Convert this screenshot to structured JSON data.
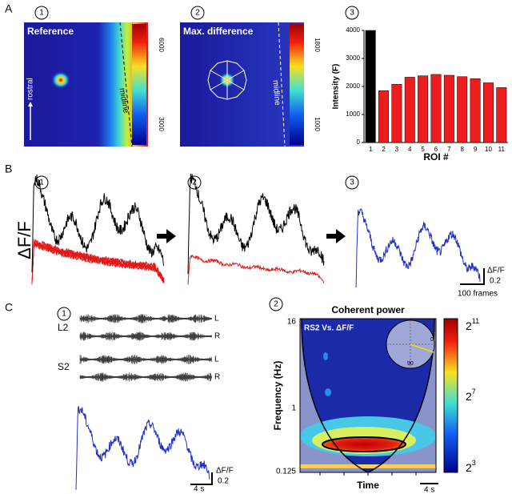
{
  "chart_data": {
    "type": "bar",
    "ylabel": "Intensity (F)",
    "xlabel": "ROI #",
    "categories": [
      "1",
      "2",
      "3",
      "4",
      "5",
      "6",
      "7",
      "8",
      "9",
      "10",
      "11"
    ],
    "values": [
      4000,
      1850,
      2080,
      2330,
      2380,
      2430,
      2400,
      2350,
      2280,
      2130,
      1960
    ],
    "colors": [
      "#000000",
      "#ee1c1c",
      "#ee1c1c",
      "#ee1c1c",
      "#ee1c1c",
      "#ee1c1c",
      "#ee1c1c",
      "#ee1c1c",
      "#ee1c1c",
      "#ee1c1c",
      "#ee1c1c"
    ],
    "ylim": [
      0,
      4000
    ],
    "yticks": [
      0,
      1000,
      2000,
      3000,
      4000
    ],
    "grid": false
  },
  "figure": {
    "panel_labels": [
      "A",
      "B",
      "C"
    ],
    "step_labels": [
      "1",
      "2",
      "3"
    ],
    "a": {
      "reference": "Reference",
      "max_difference": "Max. difference",
      "rostral": "rostral",
      "midline": "midline",
      "colorbar1": [
        "6000",
        "3000"
      ],
      "colorbar2": [
        "1800",
        "1000"
      ]
    },
    "b": {
      "ylabel": "ΔF/F",
      "scale_y_label": "ΔF/F",
      "scale_y_value": "0.2",
      "scale_x": "100 frames"
    },
    "c": {
      "channels": [
        "L2",
        "S2"
      ],
      "sides": [
        "L",
        "R"
      ],
      "scale_y_label": "ΔF/F",
      "scale_y_value": "0.2",
      "scale_x": "4 s",
      "title": "Coherent power",
      "inset": "RS2 Vs. ΔF/F",
      "ylabel": "Frequency (Hz)",
      "yticks": [
        "16",
        "1",
        "0.125"
      ],
      "xlabel": "Time",
      "time_scale": "4 s",
      "colorbar": [
        {
          "base": "2",
          "exp": "11"
        },
        {
          "base": "2",
          "exp": "7"
        },
        {
          "base": "2",
          "exp": "3"
        }
      ],
      "phase_ticks": [
        "0",
        "90"
      ]
    }
  }
}
